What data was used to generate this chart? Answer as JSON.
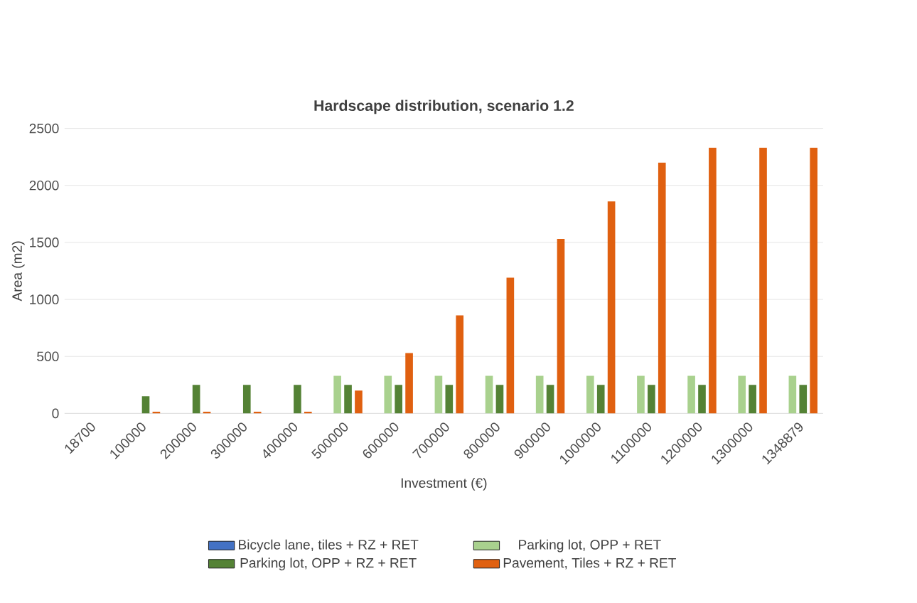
{
  "chart_data": {
    "type": "bar",
    "title": "Hardscape distribution, scenario 1.2",
    "xlabel": "Investment (€)",
    "ylabel": "Area (m2)",
    "categories": [
      "18700",
      "100000",
      "200000",
      "300000",
      "400000",
      "500000",
      "600000",
      "700000",
      "800000",
      "900000",
      "1000000",
      "1100000",
      "1200000",
      "1300000",
      "1348879"
    ],
    "series": [
      {
        "name": "Bicycle lane, tiles + RZ + RET",
        "color": "#4472c4",
        "values": [
          0,
          0,
          0,
          0,
          0,
          0,
          0,
          0,
          0,
          0,
          0,
          0,
          0,
          0,
          0
        ]
      },
      {
        "name": "Parking lot, OPP + RET",
        "color": "#a9d18e",
        "values": [
          0,
          0,
          0,
          0,
          0,
          330,
          330,
          330,
          330,
          330,
          330,
          330,
          330,
          330,
          330
        ]
      },
      {
        "name": "Parking lot, OPP + RZ + RET",
        "color": "#548235",
        "values": [
          0,
          150,
          250,
          250,
          250,
          250,
          250,
          250,
          250,
          250,
          250,
          250,
          250,
          250,
          250
        ]
      },
      {
        "name": "Pavement, Tiles + RZ + RET",
        "color": "#e06010",
        "values": [
          0,
          15,
          15,
          15,
          15,
          200,
          530,
          860,
          1190,
          1530,
          1860,
          2200,
          2330,
          2330,
          2330
        ]
      }
    ],
    "ylim": [
      0,
      2500
    ],
    "yticks": [
      0,
      500,
      1000,
      1500,
      2000,
      2500
    ],
    "grid": "y",
    "legend": "bottom"
  }
}
